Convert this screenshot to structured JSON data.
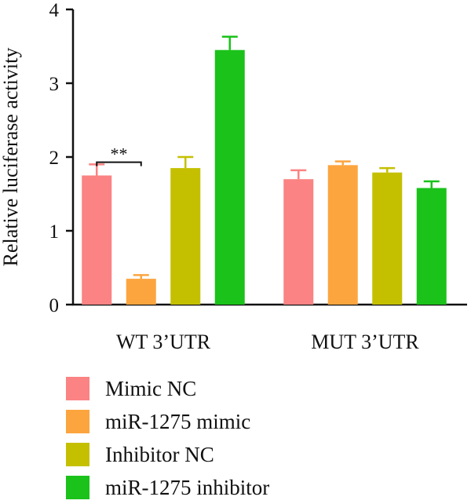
{
  "chart_data": {
    "type": "bar",
    "title": "",
    "xlabel": "",
    "ylabel": "Relative luciferase activity",
    "ylim": [
      0,
      4
    ],
    "yticks": [
      0,
      1,
      2,
      3,
      4
    ],
    "categories": [
      "WT 3’UTR",
      "MUT 3’UTR"
    ],
    "series": [
      {
        "name": "Mimic NC",
        "color": "#fb8383",
        "values": [
          1.75,
          1.7
        ],
        "errors": [
          0.15,
          0.12
        ]
      },
      {
        "name": "miR-1275 mimic",
        "color": "#fca53f",
        "values": [
          0.35,
          1.89
        ],
        "errors": [
          0.05,
          0.05
        ]
      },
      {
        "name": "Inhibitor NC",
        "color": "#c4c000",
        "values": [
          1.85,
          1.79
        ],
        "errors": [
          0.15,
          0.06
        ]
      },
      {
        "name": "miR-1275 inhibitor",
        "color": "#1ac21a",
        "values": [
          3.45,
          1.58
        ],
        "errors": [
          0.18,
          0.09
        ]
      }
    ],
    "annotations": [
      {
        "text": "**",
        "category": "WT 3’UTR",
        "between_series": [
          0,
          1
        ],
        "y": 1.93
      }
    ],
    "legend_position": "bottom",
    "grid": false
  }
}
